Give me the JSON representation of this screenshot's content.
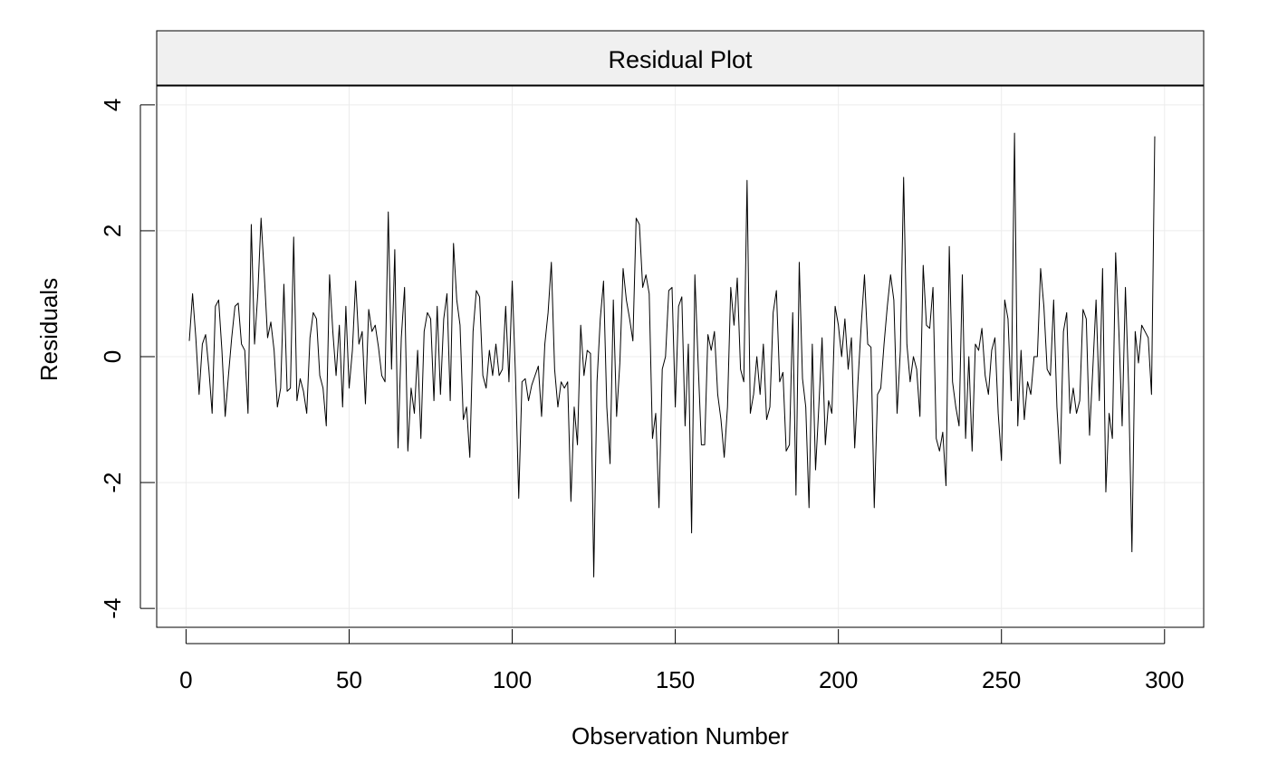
{
  "chart_data": {
    "type": "line",
    "title": "Residual Plot",
    "xlabel": "Observation Number",
    "ylabel": "Residuals",
    "xlim": [
      -9,
      312
    ],
    "ylim": [
      -4.3,
      4.3
    ],
    "grid": true,
    "x_ticks": [
      0,
      50,
      100,
      150,
      200,
      250,
      300
    ],
    "x_tick_labels": [
      "0",
      "50",
      "100",
      "150",
      "200",
      "250",
      "300"
    ],
    "y_ticks": [
      -4,
      -2,
      0,
      2,
      4
    ],
    "y_tick_labels": [
      "-4",
      "-2",
      "0",
      "2",
      "4"
    ],
    "series": [
      {
        "color": "#000000",
        "x_start": 1,
        "x_step": 1,
        "values": [
          0.25,
          1.0,
          0.3,
          -0.6,
          0.2,
          0.35,
          -0.2,
          -0.9,
          0.8,
          0.9,
          0.1,
          -0.95,
          -0.3,
          0.3,
          0.8,
          0.85,
          0.2,
          0.1,
          -0.9,
          2.1,
          0.2,
          1.0,
          2.2,
          1.3,
          0.3,
          0.55,
          0.1,
          -0.8,
          -0.5,
          1.15,
          -0.55,
          -0.5,
          1.9,
          -0.7,
          -0.35,
          -0.55,
          -0.9,
          0.3,
          0.7,
          0.6,
          -0.3,
          -0.5,
          -1.1,
          1.3,
          0.4,
          -0.3,
          0.5,
          -0.8,
          0.8,
          -0.5,
          0.1,
          1.2,
          0.2,
          0.4,
          -0.75,
          0.75,
          0.4,
          0.5,
          0.15,
          -0.3,
          -0.4,
          2.3,
          -0.2,
          1.7,
          -1.45,
          0.3,
          1.1,
          -1.5,
          -0.5,
          -0.9,
          0.1,
          -1.3,
          0.4,
          0.7,
          0.6,
          -0.7,
          0.8,
          -0.6,
          0.6,
          1.0,
          -0.7,
          1.8,
          0.9,
          0.5,
          -1.0,
          -0.8,
          -1.6,
          0.4,
          1.05,
          0.95,
          -0.3,
          -0.5,
          0.1,
          -0.3,
          0.2,
          -0.3,
          -0.2,
          0.8,
          -0.4,
          1.2,
          -0.3,
          -2.25,
          -0.4,
          -0.35,
          -0.7,
          -0.45,
          -0.3,
          -0.15,
          -0.95,
          0.2,
          0.7,
          1.5,
          -0.2,
          -0.8,
          -0.4,
          -0.5,
          -0.4,
          -2.3,
          -0.8,
          -1.4,
          0.5,
          -0.3,
          0.1,
          0.05,
          -3.5,
          -0.4,
          0.6,
          1.2,
          -0.8,
          -1.7,
          0.9,
          -0.95,
          -0.1,
          1.4,
          0.9,
          0.6,
          0.25,
          2.2,
          2.1,
          1.1,
          1.3,
          1.0,
          -1.3,
          -0.9,
          -2.4,
          -0.2,
          0.0,
          1.05,
          1.1,
          -0.8,
          0.8,
          0.95,
          -1.1,
          0.2,
          -2.8,
          1.3,
          -0.1,
          -1.4,
          -1.4,
          0.35,
          0.1,
          0.4,
          -0.6,
          -1.0,
          -1.6,
          -0.8,
          1.1,
          0.5,
          1.25,
          -0.2,
          -0.4,
          2.8,
          -0.9,
          -0.6,
          0.0,
          -0.6,
          0.2,
          -1.0,
          -0.8,
          0.7,
          1.05,
          -0.4,
          -0.25,
          -1.5,
          -1.4,
          0.7,
          -2.2,
          1.5,
          -0.35,
          -0.8,
          -2.4,
          0.2,
          -1.8,
          -0.8,
          0.3,
          -1.4,
          -0.7,
          -0.9,
          0.8,
          0.5,
          0.0,
          0.6,
          -0.2,
          0.3,
          -1.45,
          -0.4,
          0.5,
          1.3,
          0.2,
          0.15,
          -2.4,
          -0.6,
          -0.5,
          0.2,
          0.8,
          1.3,
          0.9,
          -0.9,
          0.1,
          2.85,
          0.2,
          -0.4,
          0.0,
          -0.2,
          -0.95,
          1.45,
          0.5,
          0.45,
          1.1,
          -1.3,
          -1.5,
          -1.2,
          -2.05,
          1.75,
          -0.4,
          -0.8,
          -1.1,
          1.3,
          -1.3,
          0.0,
          -1.5,
          0.2,
          0.1,
          0.45,
          -0.3,
          -0.6,
          0.1,
          0.3,
          -0.9,
          -1.65,
          0.9,
          0.6,
          -0.7,
          3.55,
          -1.1,
          0.1,
          -1.0,
          -0.4,
          -0.6,
          0.0,
          0.0,
          1.4,
          0.8,
          -0.2,
          -0.3,
          0.9,
          -0.8,
          -1.7,
          0.4,
          0.7,
          -0.9,
          -0.5,
          -0.9,
          -0.7,
          0.75,
          0.6,
          -1.25,
          -0.2,
          0.9,
          -0.7,
          1.4,
          -2.15,
          -0.9,
          -1.3,
          1.65,
          0.4,
          -1.1,
          1.1,
          -0.5,
          -3.1,
          0.4,
          -0.1,
          0.5,
          0.4,
          0.3,
          -0.6,
          3.5
        ]
      }
    ]
  }
}
